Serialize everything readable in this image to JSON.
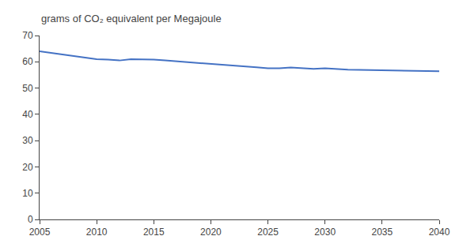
{
  "chart_data": {
    "type": "line",
    "ylabel": "grams of CO₂ equivalent per Megajoule",
    "x": [
      2005,
      2006,
      2007,
      2008,
      2009,
      2010,
      2011,
      2012,
      2013,
      2014,
      2015,
      2016,
      2017,
      2018,
      2019,
      2020,
      2021,
      2022,
      2023,
      2024,
      2025,
      2026,
      2027,
      2028,
      2029,
      2030,
      2031,
      2032,
      2033,
      2034,
      2035,
      2036,
      2037,
      2038,
      2039,
      2040
    ],
    "values": [
      64.0,
      63.5,
      62.8,
      62.2,
      61.5,
      61.0,
      60.8,
      60.5,
      61.0,
      61.0,
      60.8,
      60.5,
      60.2,
      59.8,
      59.5,
      59.2,
      58.8,
      58.5,
      58.2,
      57.9,
      57.5,
      57.5,
      57.8,
      57.5,
      57.3,
      57.5,
      57.2,
      57.0,
      56.9,
      56.8,
      56.7,
      56.6,
      56.5,
      56.5,
      56.5,
      56.4
    ],
    "color": "#4472C4",
    "xlim": [
      2005,
      2040
    ],
    "xticks": [
      2005,
      2010,
      2015,
      2020,
      2025,
      2030,
      2035,
      2040
    ],
    "ylim": [
      0,
      70
    ],
    "yticks": [
      0,
      10,
      20,
      30,
      40,
      50,
      60,
      70
    ],
    "grid": false
  }
}
